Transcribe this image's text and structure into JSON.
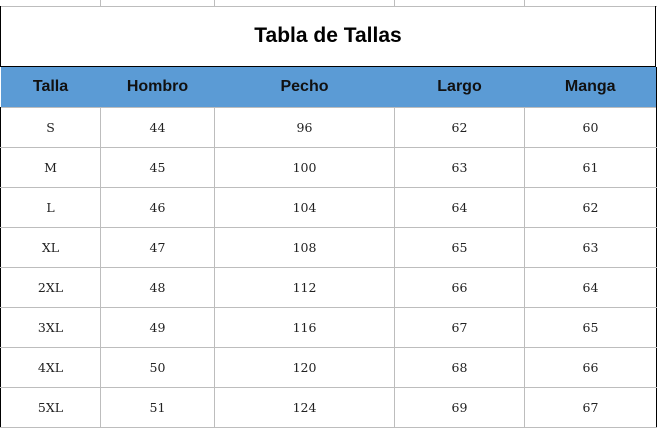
{
  "title": "Tabla de Tallas",
  "header_color": "#5b9bd5",
  "columns": [
    "Talla",
    "Hombro",
    "Pecho",
    "Largo",
    "Manga"
  ],
  "rows": [
    [
      "S",
      "44",
      "96",
      "62",
      "60"
    ],
    [
      "M",
      "45",
      "100",
      "63",
      "61"
    ],
    [
      "L",
      "46",
      "104",
      "64",
      "62"
    ],
    [
      "XL",
      "47",
      "108",
      "65",
      "63"
    ],
    [
      "2XL",
      "48",
      "112",
      "66",
      "64"
    ],
    [
      "3XL",
      "49",
      "116",
      "67",
      "65"
    ],
    [
      "4XL",
      "50",
      "120",
      "68",
      "66"
    ],
    [
      "5XL",
      "51",
      "124",
      "69",
      "67"
    ]
  ]
}
